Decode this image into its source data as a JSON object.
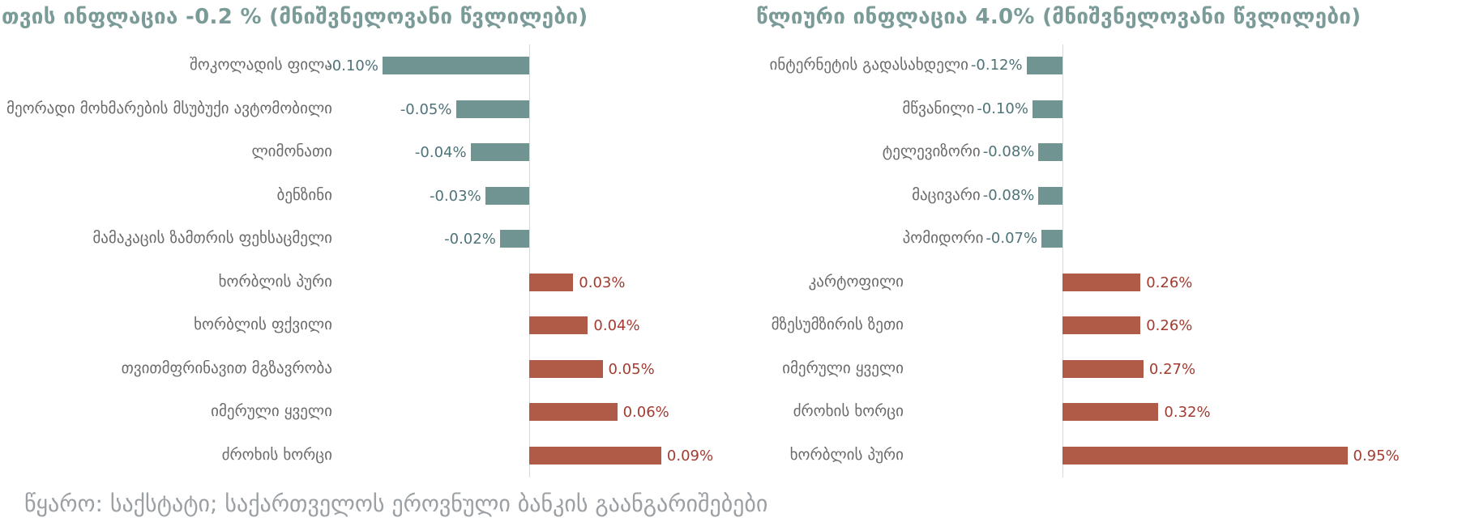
{
  "footer": "წყარო: საქსტატი; საქართველოს ეროვნული ბანკის გაანგარიშებები",
  "colors": {
    "negative_bar": "#6f9492",
    "positive_bar": "#b05b48",
    "negative_value_text": "#4e7378",
    "positive_value_text": "#a23b30",
    "title_text": "#7b9b99",
    "category_text": "#6a6a6a",
    "source_text": "#9ba0a4",
    "axis_line": "#d9d9d9"
  },
  "chart_data": [
    {
      "type": "bar",
      "orientation": "horizontal",
      "title": "თვის ინფლაცია -0.2 % (მნიშვნელოვანი წვლილები)",
      "headline_value": "-0.2 %",
      "categories": [
        "შოკოლადის ფილა",
        "მეორადი მოხმარების მსუბუქი ავტომობილი",
        "ლიმონათი",
        "ბენზინი",
        "მამაკაცის ზამთრის ფეხსაცმელი",
        "ხორბლის პური",
        "ხორბლის ფქვილი",
        "თვითმფრინავით მგზავრობა",
        "იმერული ყველი",
        "ძროხის ხორცი"
      ],
      "values": [
        -0.1,
        -0.05,
        -0.04,
        -0.03,
        -0.02,
        0.03,
        0.04,
        0.05,
        0.06,
        0.09
      ],
      "value_labels": [
        "-0.10%",
        "-0.05%",
        "-0.04%",
        "-0.03%",
        "-0.02%",
        "0.03%",
        "0.04%",
        "0.05%",
        "0.06%",
        "0.09%"
      ],
      "unit": "%",
      "grid": "off",
      "legend": "none"
    },
    {
      "type": "bar",
      "orientation": "horizontal",
      "title": "წლიური ინფლაცია 4.0% (მნიშვნელოვანი წვლილები)",
      "headline_value": "4.0%",
      "categories": [
        "ინტერნეტის გადასახდელი",
        "მწვანილი",
        "ტელევიზორი",
        "მაცივარი",
        "პომიდორი",
        "კარტოფილი",
        "მზესუმზირის ზეთი",
        "იმერული ყველი",
        "ძროხის ხორცი",
        "ხორბლის პური"
      ],
      "values": [
        -0.12,
        -0.1,
        -0.08,
        -0.08,
        -0.07,
        0.26,
        0.26,
        0.27,
        0.32,
        0.95
      ],
      "value_labels": [
        "-0.12%",
        "-0.10%",
        "-0.08%",
        "-0.08%",
        "-0.07%",
        "0.26%",
        "0.26%",
        "0.27%",
        "0.32%",
        "0.95%"
      ],
      "unit": "%",
      "grid": "off",
      "legend": "none"
    }
  ]
}
